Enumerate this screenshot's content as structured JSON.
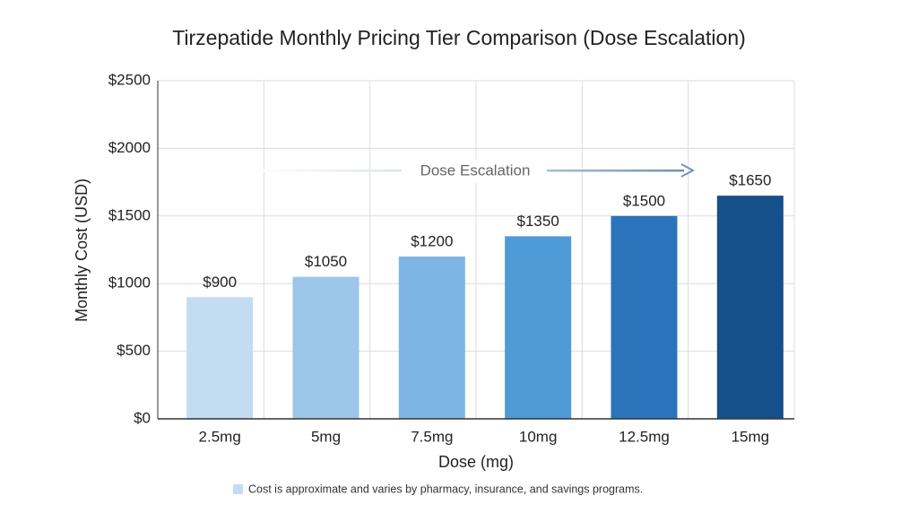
{
  "chart_data": {
    "type": "bar",
    "title": "Tirzepatide Monthly Pricing Tier Comparison (Dose Escalation)",
    "x_label": "Dose (mg)",
    "y_label": "Monthly Cost (USD)",
    "categories": [
      "2.5mg",
      "5mg",
      "7.5mg",
      "10mg",
      "12.5mg",
      "15mg"
    ],
    "values": [
      900,
      1050,
      1200,
      1350,
      1500,
      1650
    ],
    "value_labels": [
      "$900",
      "$1050",
      "$1200",
      "$1350",
      "$1500",
      "$1650"
    ],
    "colors": [
      "#c3dcf2",
      "#9cc6ea",
      "#7db6e4",
      "#4f9bd8",
      "#2b74bb",
      "#16508a"
    ],
    "ylim": [
      0,
      2500
    ],
    "yticks": [
      {
        "value": 0,
        "label": "$0"
      },
      {
        "value": 500,
        "label": "$500"
      },
      {
        "value": 1000,
        "label": "$1000"
      },
      {
        "value": 1500,
        "label": "$1500"
      },
      {
        "value": 2000,
        "label": "$2000"
      },
      {
        "value": 2500,
        "label": "$2500"
      }
    ],
    "grid": true,
    "annotation": "Dose Escalation",
    "note": "Cost is approximate and varies by pharmacy, insurance, and savings programs.",
    "note_color": "#c3dcf2"
  }
}
